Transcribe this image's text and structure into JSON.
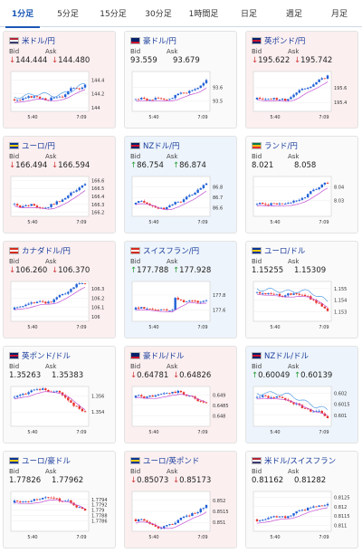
{
  "tabs": [
    {
      "label": "1分足",
      "active": true
    },
    {
      "label": "5分足",
      "active": false
    },
    {
      "label": "15分足",
      "active": false
    },
    {
      "label": "30分足",
      "active": false
    },
    {
      "label": "1時間足",
      "active": false
    },
    {
      "label": "日足",
      "active": false
    },
    {
      "label": "週足",
      "active": false
    },
    {
      "label": "月足",
      "active": false
    }
  ],
  "labels": {
    "bid": "Bid",
    "ask": "Ask"
  },
  "colors": {
    "up_candle": "#1f5fd6",
    "down_candle": "#e8322b",
    "ma": "#c24fd1",
    "signal": "#3b8fe0",
    "down_bg": "#fbeff0",
    "up_bg": "#edf4fb"
  },
  "pairs": [
    {
      "name": "米ドル/円",
      "trend": "down",
      "bid": "144.444",
      "ask": "144.480",
      "bid_arrow": "down",
      "ask_arrow": "down",
      "flags": [
        [
          "#b22234",
          "#ffffff",
          "#3c3b6e"
        ],
        [
          "#ffffff",
          "#bc002d",
          "#ffffff"
        ]
      ],
      "ticks": [
        "144.4",
        "144.2",
        "144"
      ],
      "range": [
        143.95,
        144.52
      ],
      "times": [
        "5:40",
        "7:09"
      ],
      "shape": "up",
      "signal_line": true,
      "seed": 3
    },
    {
      "name": "豪ドル/円",
      "trend": "flat",
      "bid": "93.559",
      "ask": "93.679",
      "bid_arrow": "",
      "ask_arrow": "",
      "flags": [
        [
          "#012169",
          "#012169",
          "#c8102e"
        ],
        [
          "#ffffff",
          "#bc002d",
          "#ffffff"
        ]
      ],
      "ticks": [
        "93.6",
        "93.5"
      ],
      "range": [
        93.42,
        93.72
      ],
      "times": [
        "5:40",
        "7:09"
      ],
      "shape": "up",
      "signal_line": false,
      "seed": 7
    },
    {
      "name": "英ポンド/円",
      "trend": "down",
      "bid": "195.622",
      "ask": "195.742",
      "bid_arrow": "down",
      "ask_arrow": "down",
      "flags": [
        [
          "#012169",
          "#c8102e",
          "#012169"
        ],
        [
          "#ffffff",
          "#bc002d",
          "#ffffff"
        ]
      ],
      "ticks": [
        "195.6",
        "195.4"
      ],
      "range": [
        195.28,
        195.82
      ],
      "times": [
        "5:40",
        "7:09"
      ],
      "shape": "up",
      "signal_line": false,
      "seed": 11
    },
    {
      "name": "ユーロ/円",
      "trend": "down",
      "bid": "166.494",
      "ask": "166.594",
      "bid_arrow": "down",
      "ask_arrow": "down",
      "flags": [
        [
          "#003399",
          "#ffcc00",
          "#003399"
        ],
        [
          "#ffffff",
          "#bc002d",
          "#ffffff"
        ]
      ],
      "ticks": [
        "166.6",
        "166.5",
        "166.4",
        "166.3",
        "166.2"
      ],
      "range": [
        166.15,
        166.65
      ],
      "times": [
        "5:40",
        "7:09"
      ],
      "shape": "up",
      "signal_line": false,
      "seed": 13
    },
    {
      "name": "NZドル/円",
      "trend": "up",
      "bid": "86.754",
      "ask": "86.874",
      "bid_arrow": "up",
      "ask_arrow": "up",
      "flags": [
        [
          "#012169",
          "#c8102e",
          "#012169"
        ],
        [
          "#ffffff",
          "#bc002d",
          "#ffffff"
        ]
      ],
      "ticks": [
        "86.8",
        "86.7",
        "86.6"
      ],
      "range": [
        86.52,
        86.9
      ],
      "times": [
        "5:40",
        "7:09"
      ],
      "shape": "up",
      "signal_line": false,
      "seed": 17
    },
    {
      "name": "ランド/円",
      "trend": "flat",
      "bid": "8.021",
      "ask": "8.058",
      "bid_arrow": "",
      "ask_arrow": "",
      "flags": [
        [
          "#007a4d",
          "#ffb612",
          "#de3831"
        ],
        [
          "#ffffff",
          "#bc002d",
          "#ffffff"
        ]
      ],
      "ticks": [
        "8.04",
        "8.03"
      ],
      "range": [
        8.018,
        8.048
      ],
      "times": [
        "5:40",
        "7:09"
      ],
      "shape": "up",
      "signal_line": false,
      "seed": 19
    },
    {
      "name": "カナダドル/円",
      "trend": "down",
      "bid": "106.260",
      "ask": "106.370",
      "bid_arrow": "down",
      "ask_arrow": "down",
      "flags": [
        [
          "#d52b1e",
          "#ffffff",
          "#d52b1e"
        ],
        [
          "#ffffff",
          "#bc002d",
          "#ffffff"
        ]
      ],
      "ticks": [
        "106.3",
        "106.2",
        "106.1",
        "106"
      ],
      "range": [
        105.95,
        106.38
      ],
      "times": [
        "5:40",
        "7:09"
      ],
      "shape": "up",
      "signal_line": false,
      "seed": 23
    },
    {
      "name": "スイスフラン/円",
      "trend": "up",
      "bid": "177.788",
      "ask": "177.928",
      "bid_arrow": "up",
      "ask_arrow": "up",
      "flags": [
        [
          "#d52b1e",
          "#ffffff",
          "#d52b1e"
        ],
        [
          "#ffffff",
          "#bc002d",
          "#ffffff"
        ]
      ],
      "ticks": [
        "177.8",
        "177.6"
      ],
      "range": [
        177.45,
        177.98
      ],
      "times": [
        "5:40",
        "7:09"
      ],
      "shape": "jump",
      "signal_line": false,
      "seed": 29
    },
    {
      "name": "ユーロ/ドル",
      "trend": "flat",
      "bid": "1.15255",
      "ask": "1.15309",
      "bid_arrow": "",
      "ask_arrow": "",
      "flags": [
        [
          "#003399",
          "#ffcc00",
          "#003399"
        ],
        [
          "#b22234",
          "#ffffff",
          "#3c3b6e"
        ]
      ],
      "ticks": [
        "1.155",
        "1.154",
        "1.153"
      ],
      "range": [
        1.1522,
        1.1556
      ],
      "times": [
        "5:40",
        "7:09"
      ],
      "shape": "down",
      "signal_line": true,
      "seed": 31
    },
    {
      "name": "英ポンド/ドル",
      "trend": "flat",
      "bid": "1.35263",
      "ask": "1.35383",
      "bid_arrow": "",
      "ask_arrow": "",
      "flags": [
        [
          "#012169",
          "#c8102e",
          "#012169"
        ],
        [
          "#b22234",
          "#ffffff",
          "#3c3b6e"
        ]
      ],
      "ticks": [
        "1.356",
        "1.354"
      ],
      "range": [
        1.3522,
        1.3572
      ],
      "times": [
        "5:40",
        "7:09"
      ],
      "shape": "down",
      "signal_line": false,
      "seed": 37
    },
    {
      "name": "豪ドル/ドル",
      "trend": "down",
      "bid": "0.64781",
      "ask": "0.64826",
      "bid_arrow": "down",
      "ask_arrow": "down",
      "flags": [
        [
          "#012169",
          "#012169",
          "#c8102e"
        ],
        [
          "#b22234",
          "#ffffff",
          "#3c3b6e"
        ]
      ],
      "ticks": [
        "0.649",
        "0.6485",
        "0.648"
      ],
      "range": [
        0.6475,
        0.6494
      ],
      "times": [
        "5:40",
        "7:09"
      ],
      "shape": "down",
      "signal_line": false,
      "seed": 41
    },
    {
      "name": "NZドル/ドル",
      "trend": "up",
      "bid": "0.60049",
      "ask": "0.60139",
      "bid_arrow": "up",
      "ask_arrow": "up",
      "flags": [
        [
          "#012169",
          "#c8102e",
          "#012169"
        ],
        [
          "#b22234",
          "#ffffff",
          "#3c3b6e"
        ]
      ],
      "ticks": [
        "0.602",
        "0.6015",
        "0.601"
      ],
      "range": [
        0.6005,
        0.6023
      ],
      "times": [
        "5:40",
        "7:09"
      ],
      "shape": "down",
      "signal_line": true,
      "seed": 43
    },
    {
      "name": "ユーロ/豪ドル",
      "trend": "flat",
      "bid": "1.77826",
      "ask": "1.77962",
      "bid_arrow": "",
      "ask_arrow": "",
      "flags": [
        [
          "#003399",
          "#ffcc00",
          "#003399"
        ],
        [
          "#012169",
          "#012169",
          "#c8102e"
        ]
      ],
      "ticks": [
        "1.7794",
        "1.7792",
        "1.779",
        "1.7788",
        "1.7786"
      ],
      "range": [
        1.7782,
        1.7797
      ],
      "times": [
        "5:40",
        "7:09"
      ],
      "shape": "down",
      "signal_line": false,
      "seed": 47
    },
    {
      "name": "ユーロ/英ポンド",
      "trend": "down",
      "bid": "0.85073",
      "ask": "0.85173",
      "bid_arrow": "down",
      "ask_arrow": "down",
      "flags": [
        [
          "#003399",
          "#ffcc00",
          "#003399"
        ],
        [
          "#012169",
          "#c8102e",
          "#012169"
        ]
      ],
      "ticks": [
        "0.852",
        "0.8515",
        "0.851"
      ],
      "range": [
        0.8506,
        0.8524
      ],
      "times": [
        "5:40",
        "7:09"
      ],
      "shape": "up",
      "signal_line": false,
      "seed": 53
    },
    {
      "name": "米ドル/スイスフラン",
      "trend": "flat",
      "bid": "0.81162",
      "ask": "0.81282",
      "bid_arrow": "",
      "ask_arrow": "",
      "flags": [
        [
          "#b22234",
          "#ffffff",
          "#3c3b6e"
        ],
        [
          "#d52b1e",
          "#ffffff",
          "#d52b1e"
        ]
      ],
      "ticks": [
        "0.8125",
        "0.812",
        "0.8115",
        "0.811"
      ],
      "range": [
        0.8107,
        0.8128
      ],
      "times": [
        "5:40",
        "7:09"
      ],
      "shape": "up",
      "signal_line": false,
      "seed": 59
    }
  ]
}
